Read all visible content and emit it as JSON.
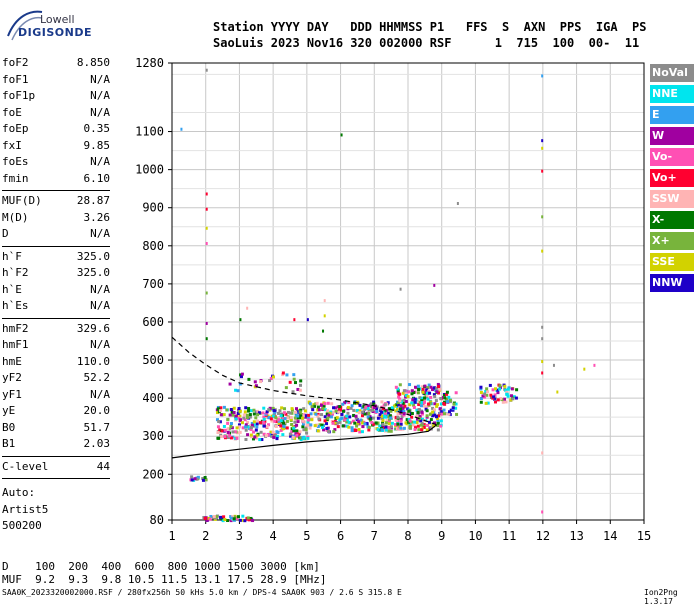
{
  "logo": {
    "line1": "Lowell",
    "line2": "DIGISONDE"
  },
  "header": {
    "line1": "Station YYYY DAY   DDD HHMMSS P1   FFS  S  AXN  PPS  IGA  PS",
    "line2": "SaoLuis 2023 Nov16 320 002000 RSF      1  715  100  00-  11"
  },
  "params": {
    "group1": [
      {
        "k": "foF2",
        "v": "8.850"
      },
      {
        "k": "foF1",
        "v": "N/A"
      },
      {
        "k": "foF1p",
        "v": "N/A"
      },
      {
        "k": "foE",
        "v": "N/A"
      },
      {
        "k": "foEp",
        "v": "0.35"
      },
      {
        "k": "fxI",
        "v": "9.85"
      },
      {
        "k": "foEs",
        "v": "N/A"
      },
      {
        "k": "fmin",
        "v": "6.10"
      }
    ],
    "group2": [
      {
        "k": "MUF(D)",
        "v": "28.87"
      },
      {
        "k": "M(D)",
        "v": "3.26"
      },
      {
        "k": "D",
        "v": "N/A"
      }
    ],
    "group3": [
      {
        "k": "h`F",
        "v": "325.0"
      },
      {
        "k": "h`F2",
        "v": "325.0"
      },
      {
        "k": "h`E",
        "v": "N/A"
      },
      {
        "k": "h`Es",
        "v": "N/A"
      }
    ],
    "group4": [
      {
        "k": "hmF2",
        "v": "329.6"
      },
      {
        "k": "hmF1",
        "v": "N/A"
      },
      {
        "k": "hmE",
        "v": "110.0"
      },
      {
        "k": "yF2",
        "v": "52.2"
      },
      {
        "k": "yF1",
        "v": "N/A"
      },
      {
        "k": "yE",
        "v": "20.0"
      },
      {
        "k": "B0",
        "v": "51.7"
      },
      {
        "k": "B1",
        "v": "2.03"
      }
    ],
    "group5": [
      {
        "k": "C-level",
        "v": "44"
      }
    ]
  },
  "auto": {
    "l1": "Auto:",
    "l2": "Artist5",
    "l3": "500200"
  },
  "legend": [
    {
      "label": "NoVal",
      "color": "#8c8c8c"
    },
    {
      "label": "NNE",
      "color": "#00e5ee"
    },
    {
      "label": "E",
      "color": "#33a0f0"
    },
    {
      "label": "W",
      "color": "#a000a0"
    },
    {
      "label": "Vo-",
      "color": "#ff50b4"
    },
    {
      "label": "Vo+",
      "color": "#ff0030"
    },
    {
      "label": "SSW",
      "color": "#ffb4b4"
    },
    {
      "label": "X-",
      "color": "#007800"
    },
    {
      "label": "X+",
      "color": "#78b43c"
    },
    {
      "label": "SSE",
      "color": "#d2d200"
    },
    {
      "label": "NNW",
      "color": "#1e00c8"
    }
  ],
  "footer": {
    "line1": "D    100  200  400  600  800 1000 1500 3000 [km]",
    "line2": "MUF  9.2  9.3  9.8 10.5 11.5 13.1 17.5 28.9 [MHz]",
    "credit": "SAA0K_2023320002000.RSF / 280fx256h 50 kHs 5.0 km / DPS-4 SAA0K 903 / 2.6 S 315.8 E",
    "version": "Ion2Png 1.3.17"
  },
  "chart_data": {
    "type": "scatter",
    "x_ticks": [
      "1",
      "2",
      "3",
      "4",
      "5",
      "6",
      "7",
      "8",
      "9",
      "10",
      "11",
      "12",
      "13",
      "14",
      "15"
    ],
    "y_ticks": [
      {
        "v": 80,
        "label": "80"
      },
      {
        "v": 200,
        "label": "200"
      },
      {
        "v": 300,
        "label": "300"
      },
      {
        "v": 400,
        "label": "400"
      },
      {
        "v": 500,
        "label": "500"
      },
      {
        "v": 600,
        "label": "600"
      },
      {
        "v": 700,
        "label": "700"
      },
      {
        "v": 800,
        "label": "800"
      },
      {
        "v": 900,
        "label": "900"
      },
      {
        "v": 1000,
        "label": "1000"
      },
      {
        "v": 1100,
        "label": "1100"
      },
      {
        "v": 1280,
        "label": "1280"
      }
    ],
    "xlim": [
      1,
      15
    ],
    "ylim": [
      80,
      1280
    ],
    "grid": true,
    "profile_curve": [
      [
        1.0,
        243
      ],
      [
        2.0,
        255
      ],
      [
        3.0,
        266
      ],
      [
        4.0,
        276
      ],
      [
        5.0,
        285
      ],
      [
        6.0,
        292
      ],
      [
        7.0,
        299
      ],
      [
        8.0,
        305
      ],
      [
        8.6,
        313
      ],
      [
        8.85,
        330
      ]
    ],
    "dashed_curve": [
      [
        1.0,
        560
      ],
      [
        1.5,
        520
      ],
      [
        2.0,
        488
      ],
      [
        2.5,
        460
      ],
      [
        3.0,
        440
      ],
      [
        4.0,
        420
      ],
      [
        5.0,
        406
      ],
      [
        6.0,
        395
      ],
      [
        7.0,
        380
      ],
      [
        7.5,
        370
      ],
      [
        8.0,
        357
      ],
      [
        8.85,
        330
      ]
    ],
    "echo_clusters": [
      {
        "x0": 2.3,
        "x1": 5.0,
        "y0": 295,
        "y1": 380,
        "n": 340
      },
      {
        "x0": 5.0,
        "x1": 7.7,
        "y0": 315,
        "y1": 395,
        "n": 320
      },
      {
        "x0": 7.6,
        "x1": 8.95,
        "y0": 320,
        "y1": 440,
        "n": 260
      },
      {
        "x0": 8.9,
        "x1": 9.4,
        "y0": 360,
        "y1": 420,
        "n": 40
      },
      {
        "x0": 10.1,
        "x1": 11.2,
        "y0": 390,
        "y1": 440,
        "n": 60
      },
      {
        "x0": 1.9,
        "x1": 3.4,
        "y0": 82,
        "y1": 95,
        "n": 50
      },
      {
        "x0": 1.5,
        "x1": 2.0,
        "y0": 188,
        "y1": 198,
        "n": 14
      },
      {
        "x0": 2.6,
        "x1": 4.8,
        "y0": 420,
        "y1": 470,
        "n": 30
      }
    ],
    "stray_echoes": [
      [
        1.25,
        1110
      ],
      [
        2.0,
        1265
      ],
      [
        2.0,
        940
      ],
      [
        2.0,
        900
      ],
      [
        2.0,
        850
      ],
      [
        2.0,
        810
      ],
      [
        2.0,
        680
      ],
      [
        2.0,
        600
      ],
      [
        2.0,
        560
      ],
      [
        6.0,
        1095
      ],
      [
        11.95,
        1250
      ],
      [
        11.95,
        1080
      ],
      [
        11.95,
        1060
      ],
      [
        11.95,
        1000
      ],
      [
        11.95,
        880
      ],
      [
        11.95,
        790
      ],
      [
        11.95,
        590
      ],
      [
        11.95,
        560
      ],
      [
        11.95,
        500
      ],
      [
        11.95,
        470
      ],
      [
        11.95,
        260
      ],
      [
        11.95,
        105
      ],
      [
        9.45,
        915
      ],
      [
        8.75,
        700
      ],
      [
        7.75,
        690
      ],
      [
        5.5,
        660
      ],
      [
        5.5,
        620
      ],
      [
        5.45,
        580
      ],
      [
        5.0,
        610
      ],
      [
        4.6,
        610
      ],
      [
        3.2,
        640
      ],
      [
        3.0,
        610
      ],
      [
        12.3,
        490
      ],
      [
        12.4,
        420
      ],
      [
        13.2,
        480
      ],
      [
        13.5,
        490
      ]
    ]
  }
}
